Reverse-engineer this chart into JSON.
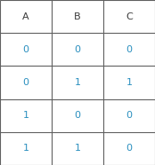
{
  "columns": [
    "A",
    "B",
    "C"
  ],
  "rows": [
    [
      "0",
      "0",
      "0"
    ],
    [
      "0",
      "1",
      "1"
    ],
    [
      "1",
      "0",
      "0"
    ],
    [
      "1",
      "1",
      "0"
    ]
  ],
  "header_color": "#3a3a3a",
  "data_color": "#2a8fbf",
  "bg_color": "#ffffff",
  "border_color": "#606060",
  "header_fontsize": 8,
  "data_fontsize": 8,
  "fig_width": 1.74,
  "fig_height": 1.86,
  "dpi": 100
}
